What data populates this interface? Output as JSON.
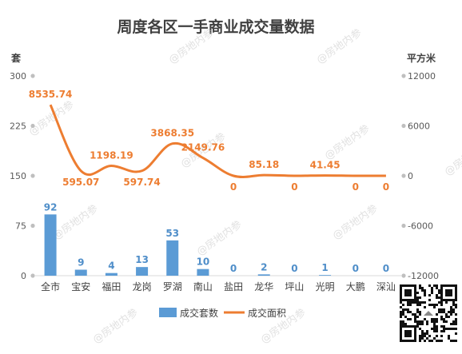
{
  "chart_data": {
    "type": "bar+line",
    "title": "周度各区一手商业成交量数据",
    "left_axis": {
      "unit_label": "套",
      "ticks": [
        0,
        75,
        150,
        225,
        300
      ],
      "range": [
        0,
        300
      ]
    },
    "right_axis": {
      "unit_label": "平方米",
      "ticks": [
        -12000,
        -6000,
        0,
        6000,
        12000
      ],
      "range": [
        -12000,
        12000
      ]
    },
    "categories": [
      "全市",
      "宝安",
      "福田",
      "龙岗",
      "罗湖",
      "南山",
      "盐田",
      "龙华",
      "坪山",
      "光明",
      "大鹏",
      "深汕"
    ],
    "series": [
      {
        "name": "成交套数",
        "kind": "bar",
        "axis": "left",
        "color": "#5b9bd5",
        "values": [
          92,
          9,
          4,
          13,
          53,
          10,
          0,
          2,
          0,
          1,
          0,
          0
        ],
        "labels": [
          "92",
          "9",
          "4",
          "13",
          "53",
          "10",
          "0",
          "2",
          "0",
          "1",
          "0",
          "0"
        ]
      },
      {
        "name": "成交面积",
        "kind": "line",
        "axis": "right",
        "color": "#ed7d31",
        "values": [
          8535.74,
          595.07,
          1198.19,
          597.74,
          3868.35,
          2149.76,
          0,
          85.18,
          0,
          41.45,
          0,
          0
        ],
        "labels": [
          "8535.74",
          "595.07",
          "1198.19",
          "597.74",
          "3868.35",
          "2149.76",
          "0",
          "85.18",
          "0",
          "41.45",
          "0",
          "0"
        ]
      }
    ],
    "legend_position": "bottom",
    "grid": false
  },
  "watermark": "@房地内参"
}
